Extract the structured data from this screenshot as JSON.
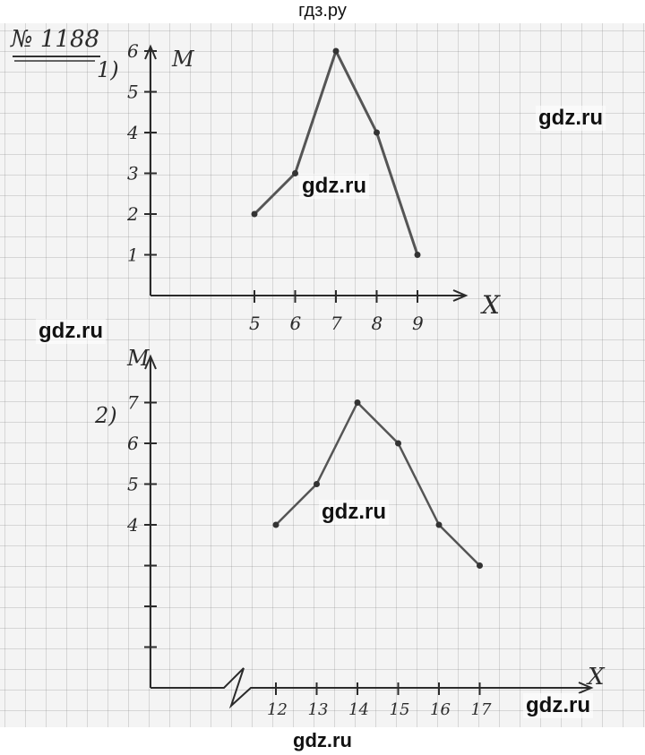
{
  "site": {
    "header": "гдз.ру",
    "footer": "gdz.ru"
  },
  "watermarks": [
    "gdz.ru",
    "gdz.ru",
    "gdz.ru",
    "gdz.ru",
    "gdz.ru"
  ],
  "exercise": "№ 1188",
  "chart_data": [
    {
      "type": "line",
      "label": "1)",
      "xlabel": "X",
      "ylabel": "M",
      "x": [
        5,
        6,
        7,
        8,
        9
      ],
      "y": [
        2,
        3,
        6,
        4,
        1
      ],
      "x_ticks": [
        "5",
        "6",
        "7",
        "8",
        "9"
      ],
      "y_ticks": [
        "1",
        "2",
        "3",
        "4",
        "5",
        "6"
      ],
      "grid": true,
      "line_color": "#555555"
    },
    {
      "type": "line",
      "label": "2)",
      "xlabel": "X",
      "ylabel": "M",
      "x": [
        12,
        13,
        14,
        15,
        16,
        17
      ],
      "y": [
        4,
        5,
        7,
        6,
        4,
        3
      ],
      "x_ticks": [
        "12",
        "13",
        "14",
        "15",
        "16",
        "17"
      ],
      "y_ticks": [
        "4",
        "5",
        "6",
        "7"
      ],
      "y_axis_break": true,
      "grid": true,
      "line_color": "#555555"
    }
  ]
}
